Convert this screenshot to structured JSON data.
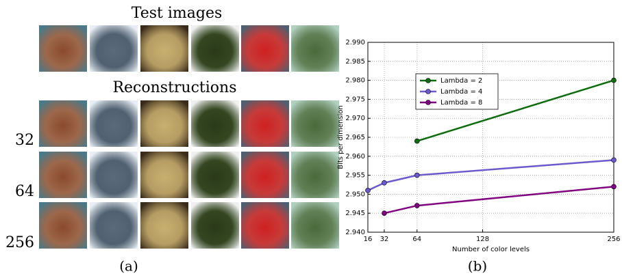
{
  "panel_a": {
    "title": "Test images",
    "subtitle": "Reconstructions",
    "row_labels": [
      "32",
      "64",
      "256"
    ],
    "caption": "(a)"
  },
  "chart_data": {
    "type": "line",
    "caption": "(b)",
    "x_label": "Number of color levels",
    "y_label": "Bits per dimension",
    "x": [
      16,
      32,
      64,
      256
    ],
    "series": [
      {
        "name": "Lambda = 2",
        "color": "#0e6b0e",
        "values": [
          null,
          null,
          2.964,
          2.98
        ]
      },
      {
        "name": "Lambda = 4",
        "color": "#6a5acd",
        "values": [
          2.951,
          2.953,
          2.955,
          2.959
        ]
      },
      {
        "name": "Lambda = 8",
        "color": "#800080",
        "values": [
          null,
          2.945,
          2.947,
          2.952
        ]
      }
    ],
    "xlim": [
      16,
      256
    ],
    "xticks": [
      16,
      32,
      64,
      128,
      256
    ],
    "ylim": [
      2.94,
      2.99
    ],
    "yticks": [
      {
        "value": 2.94,
        "label": "2.940"
      },
      2.945,
      {
        "value": 2.95,
        "label": "2.950"
      },
      2.955,
      {
        "value": 2.96,
        "label": "2.960"
      },
      2.965,
      {
        "value": 2.97,
        "label": "2.970"
      },
      2.975,
      {
        "value": 2.98,
        "label": "2.980"
      },
      2.985,
      {
        "value": 2.99,
        "label": "2.990"
      }
    ],
    "grid": true,
    "legend": "upper left"
  }
}
